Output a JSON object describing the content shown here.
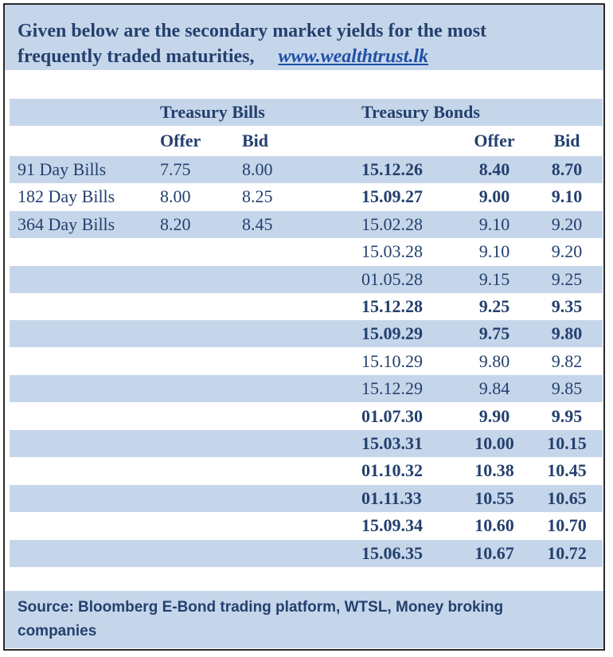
{
  "header": {
    "line1": "Given below are the secondary market yields for the most",
    "line2": "frequently traded maturities,",
    "link": "www.wealthtrust.lk"
  },
  "headings": {
    "bills_title": "Treasury Bills",
    "bonds_title": "Treasury Bonds",
    "offer": "Offer",
    "bid": "Bid"
  },
  "bills": [
    {
      "label": "91 Day Bills",
      "offer": "7.75",
      "bid": "8.00"
    },
    {
      "label": "182 Day Bills",
      "offer": "8.00",
      "bid": "8.25"
    },
    {
      "label": "364 Day Bills",
      "offer": "8.20",
      "bid": "8.45"
    }
  ],
  "bonds": [
    {
      "date": "15.12.26",
      "offer": "8.40",
      "bid": "8.70",
      "bold": true
    },
    {
      "date": "15.09.27",
      "offer": "9.00",
      "bid": "9.10",
      "bold": true
    },
    {
      "date": "15.02.28",
      "offer": "9.10",
      "bid": "9.20",
      "bold": false
    },
    {
      "date": "15.03.28",
      "offer": "9.10",
      "bid": "9.20",
      "bold": false
    },
    {
      "date": "01.05.28",
      "offer": "9.15",
      "bid": "9.25",
      "bold": false
    },
    {
      "date": "15.12.28",
      "offer": "9.25",
      "bid": "9.35",
      "bold": true
    },
    {
      "date": "15.09.29",
      "offer": "9.75",
      "bid": "9.80",
      "bold": true
    },
    {
      "date": "15.10.29",
      "offer": "9.80",
      "bid": "9.82",
      "bold": false
    },
    {
      "date": "15.12.29",
      "offer": "9.84",
      "bid": "9.85",
      "bold": false
    },
    {
      "date": "01.07.30",
      "offer": "9.90",
      "bid": "9.95",
      "bold": true
    },
    {
      "date": "15.03.31",
      "offer": "10.00",
      "bid": "10.15",
      "bold": true
    },
    {
      "date": "01.10.32",
      "offer": "10.38",
      "bid": "10.45",
      "bold": true
    },
    {
      "date": "01.11.33",
      "offer": "10.55",
      "bid": "10.65",
      "bold": true
    },
    {
      "date": "15.09.34",
      "offer": "10.60",
      "bid": "10.70",
      "bold": true
    },
    {
      "date": "15.06.35",
      "offer": "10.67",
      "bid": "10.72",
      "bold": true
    }
  ],
  "footer": {
    "line1": "Source: Bloomberg E-Bond trading platform, WTSL, Money broking",
    "line2": "companies"
  },
  "colors": {
    "band": "#c6d6ea",
    "text": "#24406e",
    "link": "#1f4fa8"
  }
}
